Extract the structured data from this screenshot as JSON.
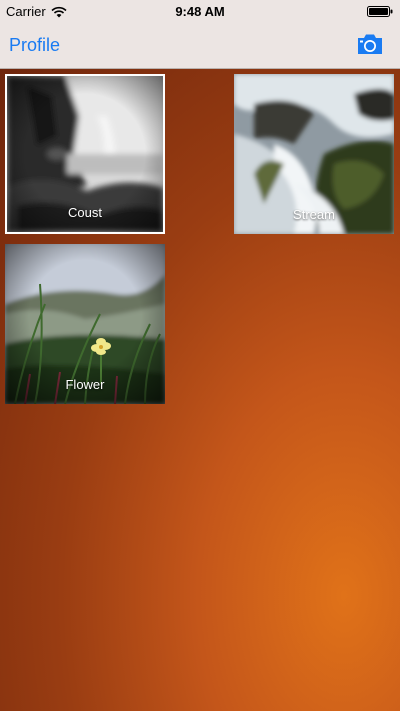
{
  "status_bar": {
    "carrier": "Carrier",
    "time": "9:48 AM",
    "icons": [
      "wifi-icon",
      "battery-icon"
    ]
  },
  "nav_bar": {
    "title": "Profile",
    "action_icon": "camera-icon"
  },
  "photos": [
    {
      "label": "Coust",
      "selected": true
    },
    {
      "label": "Stream",
      "selected": false
    },
    {
      "label": "Flower",
      "selected": false
    }
  ],
  "colors": {
    "accent": "#1a7bf2",
    "bar_background": "#ece5e3",
    "gradient_light": "#e07219",
    "gradient_dark": "#6e250c"
  }
}
